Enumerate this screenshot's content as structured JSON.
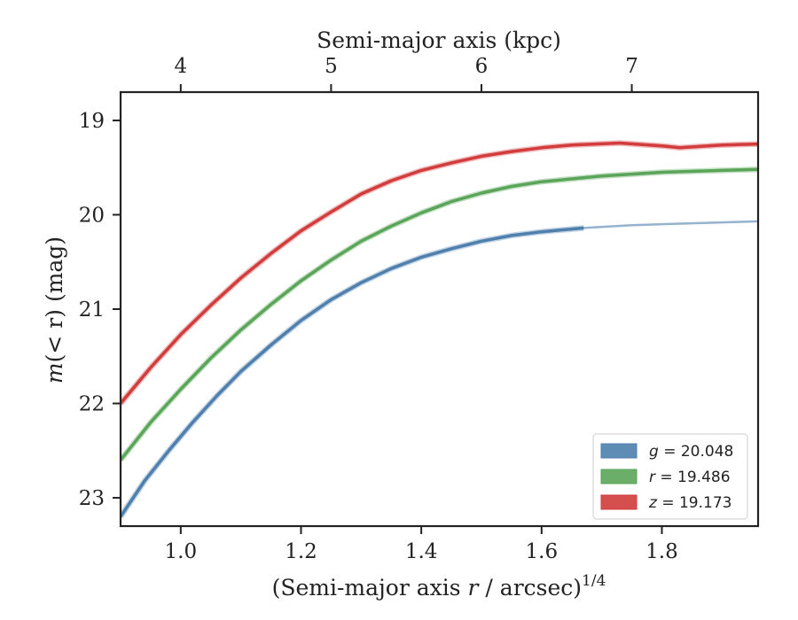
{
  "chart_data": {
    "type": "line",
    "title": "",
    "xlabel": "(Semi-major axis r / arcsec)",
    "xlabel_prefix": "(Semi-major axis ",
    "xlabel_var": "r",
    "xlabel_suffix": " / arcsec)",
    "xlabel_exponent": "1/4",
    "ylabel": "m(< r) (mag)",
    "ylabel_func": "m",
    "ylabel_args": "(< r)",
    "ylabel_unit": " (mag)",
    "top_xlabel": "Semi-major axis (kpc)",
    "xlim": [
      0.9,
      1.96
    ],
    "ylim": [
      23.3,
      18.7
    ],
    "y_inverted": true,
    "xticks": [
      1.0,
      1.2,
      1.4,
      1.6,
      1.8
    ],
    "xtick_labels": [
      "1.0",
      "1.2",
      "1.4",
      "1.6",
      "1.8"
    ],
    "yticks": [
      19,
      20,
      21,
      22,
      23
    ],
    "ytick_labels": [
      "19",
      "20",
      "21",
      "22",
      "23"
    ],
    "top_ticks_x": [
      1.0,
      1.25,
      1.5,
      1.75
    ],
    "top_tick_labels": [
      "4",
      "5",
      "6",
      "7"
    ],
    "grid": false,
    "legend_position": "lower-right",
    "series": [
      {
        "name": "g = 20.048",
        "legend_var": "g",
        "legend_value": "= 20.048",
        "color": "#4e7fad",
        "x": [
          0.9,
          0.94,
          0.98,
          1.02,
          1.06,
          1.1,
          1.15,
          1.2,
          1.25,
          1.3,
          1.35,
          1.4,
          1.45,
          1.5,
          1.55,
          1.6,
          1.67
        ],
        "y": [
          23.2,
          22.82,
          22.5,
          22.2,
          21.92,
          21.66,
          21.38,
          21.12,
          20.9,
          20.72,
          20.57,
          20.45,
          20.36,
          20.28,
          20.22,
          20.18,
          20.14
        ],
        "extrapolated_x": [
          1.67,
          1.75,
          1.85,
          1.96
        ],
        "extrapolated_y": [
          20.14,
          20.11,
          20.09,
          20.07
        ]
      },
      {
        "name": "r = 19.486",
        "legend_var": "r",
        "legend_value": "= 19.486",
        "color": "#5aa55a",
        "x": [
          0.9,
          0.95,
          1.0,
          1.05,
          1.1,
          1.15,
          1.2,
          1.25,
          1.3,
          1.35,
          1.4,
          1.45,
          1.5,
          1.55,
          1.6,
          1.7,
          1.8,
          1.9,
          1.96
        ],
        "y": [
          22.6,
          22.2,
          21.85,
          21.52,
          21.22,
          20.95,
          20.7,
          20.48,
          20.28,
          20.12,
          19.98,
          19.86,
          19.77,
          19.7,
          19.65,
          19.59,
          19.55,
          19.53,
          19.52
        ]
      },
      {
        "name": "z = 19.173",
        "legend_var": "z",
        "legend_value": "= 19.173",
        "color": "#d23c3c",
        "x": [
          0.9,
          0.95,
          1.0,
          1.05,
          1.1,
          1.15,
          1.2,
          1.25,
          1.3,
          1.35,
          1.4,
          1.45,
          1.5,
          1.55,
          1.6,
          1.65,
          1.73,
          1.8,
          1.83,
          1.9,
          1.96
        ],
        "y": [
          22.0,
          21.62,
          21.27,
          20.96,
          20.67,
          20.41,
          20.17,
          19.97,
          19.78,
          19.64,
          19.53,
          19.45,
          19.38,
          19.33,
          19.29,
          19.26,
          19.24,
          19.27,
          19.29,
          19.26,
          19.25
        ]
      }
    ]
  }
}
